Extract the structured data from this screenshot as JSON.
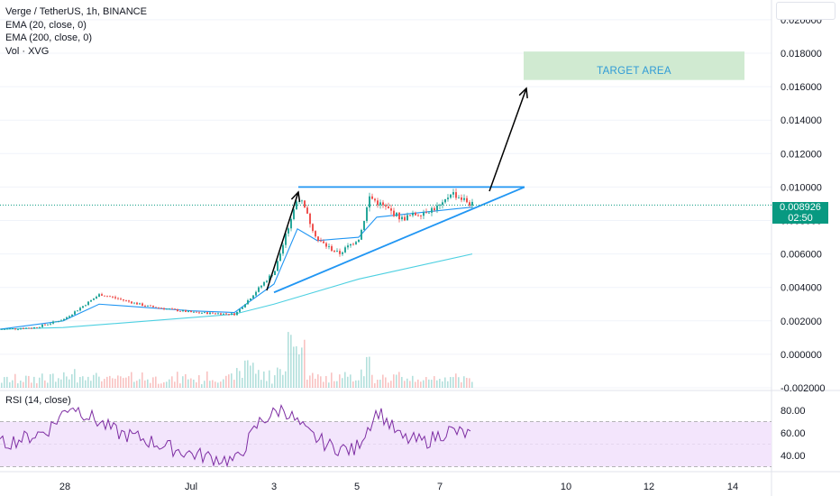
{
  "legend": {
    "symbol": "Verge / TetherUS, 1h, BINANCE",
    "ema20": "EMA (20, close, 0)",
    "ema200": "EMA (200, close, 0)",
    "vol": "Vol · XVG"
  },
  "rsi_legend": "RSI (14, close)",
  "annotation": {
    "target": "TARGET AREA"
  },
  "price_tag": {
    "price": "0.008926",
    "countdown": "02:50"
  },
  "colors": {
    "up": "#26a69a",
    "down": "#ef5350",
    "ema20": "#2196f3",
    "ema200": "#4dd0e1",
    "pattern": "#2196f3",
    "rsi": "#7e2ea3",
    "rsi_band": "#f3e5fc",
    "target_fill": "#c8e6c9"
  },
  "chart_data": [
    {
      "type": "candlestick",
      "title": "Verge / TetherUS, 1h, BINANCE",
      "x_ticks": [
        "28",
        "Jul",
        "3",
        "5",
        "7",
        "10",
        "12",
        "14"
      ],
      "y_ticks": [
        "0.020000",
        "0.018000",
        "0.016000",
        "0.014000",
        "0.012000",
        "0.010000",
        "0.008000",
        "0.006000",
        "0.004000",
        "0.002000",
        "0.000000",
        "-0.002000"
      ],
      "ylim": [
        -0.0025,
        0.0213
      ],
      "last_price": 0.008926,
      "series_overview": [
        {
          "date": "Jun 26",
          "close": 0.0015
        },
        {
          "date": "Jun 27",
          "close": 0.0016
        },
        {
          "date": "Jun 28",
          "close": 0.0021
        },
        {
          "date": "Jun 29",
          "close": 0.0036
        },
        {
          "date": "Jun 30",
          "close": 0.0029
        },
        {
          "date": "Jul 1",
          "close": 0.0025
        },
        {
          "date": "Jul 2",
          "close": 0.0024
        },
        {
          "date": "Jul 3",
          "close": 0.005
        },
        {
          "date": "Jul 3.5",
          "close": 0.0095
        },
        {
          "date": "Jul 4",
          "close": 0.0068
        },
        {
          "date": "Jul 4.5",
          "close": 0.006
        },
        {
          "date": "Jul 5",
          "close": 0.007
        },
        {
          "date": "Jul 5.3",
          "close": 0.0094
        },
        {
          "date": "Jul 6",
          "close": 0.0081
        },
        {
          "date": "Jul 7",
          "close": 0.0089
        },
        {
          "date": "Jul 7.3",
          "close": 0.0097
        },
        {
          "date": "Jul 7.8",
          "close": 0.0089
        }
      ],
      "ema20": [
        {
          "date": "Jun 26",
          "value": 0.0015
        },
        {
          "date": "Jun 28",
          "value": 0.002
        },
        {
          "date": "Jun 29",
          "value": 0.003
        },
        {
          "date": "Jul 1",
          "value": 0.0026
        },
        {
          "date": "Jul 2",
          "value": 0.0025
        },
        {
          "date": "Jul 3",
          "value": 0.0042
        },
        {
          "date": "Jul 3.5",
          "value": 0.0075
        },
        {
          "date": "Jul 4",
          "value": 0.0068
        },
        {
          "date": "Jul 5",
          "value": 0.007
        },
        {
          "date": "Jul 5.5",
          "value": 0.0082
        },
        {
          "date": "Jul 7.8",
          "value": 0.0088
        }
      ],
      "ema200": [
        {
          "date": "Jun 26",
          "value": 0.0015
        },
        {
          "date": "Jun 28",
          "value": 0.0016
        },
        {
          "date": "Jul 2",
          "value": 0.0024
        },
        {
          "date": "Jul 3",
          "value": 0.003
        },
        {
          "date": "Jul 5",
          "value": 0.0045
        },
        {
          "date": "Jul 7.8",
          "value": 0.006
        }
      ],
      "ascending_triangle": {
        "resistance": 0.01,
        "support_start": {
          "date": "Jul 3",
          "value": 0.0037
        },
        "support_end": {
          "date": "Jul 8.2",
          "value": 0.01
        }
      },
      "target_area": [
        0.0164,
        0.0181
      ]
    },
    {
      "type": "line",
      "title": "RSI (14, close)",
      "y_ticks": [
        "80.00",
        "60.00",
        "40.00"
      ],
      "band": [
        30,
        70
      ],
      "values_overview": [
        50,
        55,
        62,
        85,
        72,
        60,
        55,
        48,
        42,
        38,
        35,
        70,
        82,
        60,
        48,
        44,
        80,
        55,
        52,
        62,
        58
      ]
    }
  ]
}
